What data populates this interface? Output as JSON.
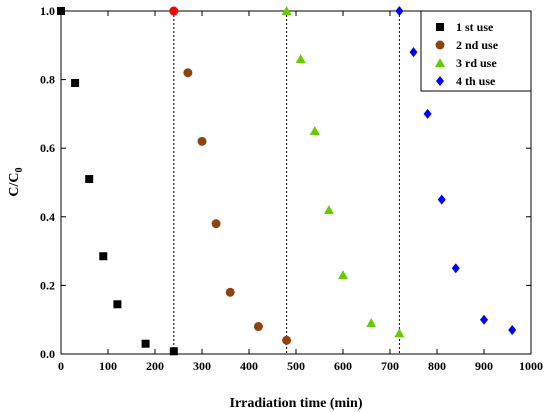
{
  "chart_data": {
    "type": "scatter",
    "xlabel": "Irradiation time (min)",
    "ylabel_main": "C/C",
    "ylabel_sub": "0",
    "xlim": [
      0,
      1000
    ],
    "ylim": [
      0,
      1.0
    ],
    "x_ticks": [
      0,
      100,
      200,
      300,
      400,
      500,
      600,
      700,
      800,
      900,
      1000
    ],
    "x_tick_labels": [
      "0",
      "100",
      "200",
      "300",
      "400",
      "500",
      "600",
      "700",
      "800",
      "900",
      "1000"
    ],
    "y_ticks": [
      0,
      0.2,
      0.4,
      0.6,
      0.8,
      1.0
    ],
    "y_tick_labels": [
      "0.0",
      "0.2",
      "0.4",
      "0.6",
      "0.8",
      "1.0"
    ],
    "vlines": [
      240,
      480,
      720
    ],
    "legend_position": "top-right",
    "series": [
      {
        "name": "1 st use",
        "marker": "square",
        "color": "#000000",
        "x": [
          0,
          30,
          60,
          90,
          120,
          180,
          240
        ],
        "y": [
          1.0,
          0.79,
          0.51,
          0.285,
          0.145,
          0.03,
          0.008
        ]
      },
      {
        "name": "2 nd use",
        "marker": "circle",
        "color": "#8B4513",
        "x": [
          270,
          300,
          330,
          360,
          420,
          480
        ],
        "y": [
          0.82,
          0.62,
          0.38,
          0.18,
          0.08,
          0.04
        ]
      },
      {
        "name": "3 rd use",
        "marker": "triangle",
        "color": "#66CC00",
        "x": [
          480,
          510,
          540,
          570,
          600,
          660,
          720
        ],
        "y": [
          1.0,
          0.86,
          0.65,
          0.42,
          0.23,
          0.09,
          0.06
        ]
      },
      {
        "name": "4 th use",
        "marker": "diamond",
        "color": "#0000FF",
        "x": [
          720,
          750,
          780,
          810,
          840,
          900,
          960
        ],
        "y": [
          1.0,
          0.88,
          0.7,
          0.45,
          0.25,
          0.1,
          0.07
        ]
      }
    ],
    "extra_points": [
      {
        "series": "2 nd use",
        "x": 240,
        "y": 1.0,
        "color": "#FF0000"
      }
    ]
  }
}
